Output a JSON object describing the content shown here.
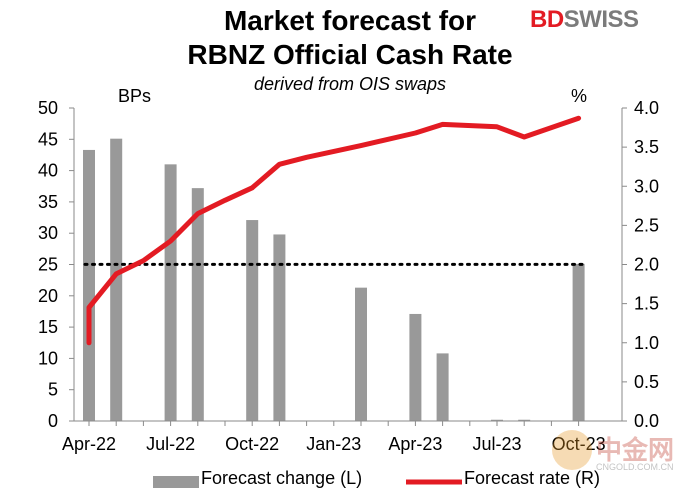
{
  "title_line1": "Market forecast for",
  "title_line2": "RBNZ Official Cash Rate",
  "subtitle": "derived from OIS swaps",
  "logo": {
    "bd": "BD",
    "swiss": "SWISS",
    "color_red": "#e31b23",
    "color_grey": "#7b7b7b"
  },
  "left_unit": "BPs",
  "right_unit": "%",
  "legend": {
    "bars": "Forecast change (L)",
    "line": "Forecast rate (R)"
  },
  "watermark": {
    "text": "中金网",
    "site": "CNGOLD.COM.CN"
  },
  "chart_data": {
    "type": "bar+line",
    "x_ticks": [
      "Apr-22",
      "Jul-22",
      "Oct-22",
      "Jan-23",
      "Apr-23",
      "Jul-23",
      "Oct-23"
    ],
    "left_axis": {
      "min": 0,
      "max": 50,
      "ticks": [
        0,
        5,
        10,
        15,
        20,
        25,
        30,
        35,
        40,
        45,
        50
      ]
    },
    "right_axis": {
      "min": 0,
      "max": 4,
      "ticks": [
        "0.0",
        "0.5",
        "1.0",
        "1.5",
        "2.0",
        "2.5",
        "3.0",
        "3.5",
        "4.0"
      ]
    },
    "bars": {
      "name": "Forecast change (L)",
      "color": "#999999",
      "points": [
        {
          "x": 0.0,
          "value": 43.3
        },
        {
          "x": 0.5,
          "value": 45.1
        },
        {
          "x": 1.5,
          "value": 41.0
        },
        {
          "x": 2.0,
          "value": 37.2
        },
        {
          "x": 3.0,
          "value": 32.1
        },
        {
          "x": 3.5,
          "value": 29.8
        },
        {
          "x": 5.0,
          "value": 21.3
        },
        {
          "x": 6.0,
          "value": 17.1
        },
        {
          "x": 6.5,
          "value": 10.8
        },
        {
          "x": 7.5,
          "value": 0.2
        },
        {
          "x": 8.0,
          "value": 0.2
        },
        {
          "x": 9.0,
          "value": 25.1
        }
      ]
    },
    "line": {
      "name": "Forecast rate (R)",
      "color": "#e31b23",
      "points": [
        {
          "x": 0.0,
          "value": 1.0
        },
        {
          "x": 0.0,
          "value": 1.45
        },
        {
          "x": 0.5,
          "value": 1.88
        },
        {
          "x": 1.0,
          "value": 2.05
        },
        {
          "x": 1.5,
          "value": 2.3
        },
        {
          "x": 2.0,
          "value": 2.65
        },
        {
          "x": 2.5,
          "value": 2.82
        },
        {
          "x": 3.0,
          "value": 2.98
        },
        {
          "x": 3.5,
          "value": 3.28
        },
        {
          "x": 4.0,
          "value": 3.37
        },
        {
          "x": 5.0,
          "value": 3.52
        },
        {
          "x": 6.0,
          "value": 3.68
        },
        {
          "x": 6.5,
          "value": 3.79
        },
        {
          "x": 7.5,
          "value": 3.76
        },
        {
          "x": 8.0,
          "value": 3.63
        },
        {
          "x": 9.0,
          "value": 3.87
        }
      ]
    },
    "reference_line": {
      "value": 25,
      "style": "dotted",
      "color": "#000000"
    }
  }
}
